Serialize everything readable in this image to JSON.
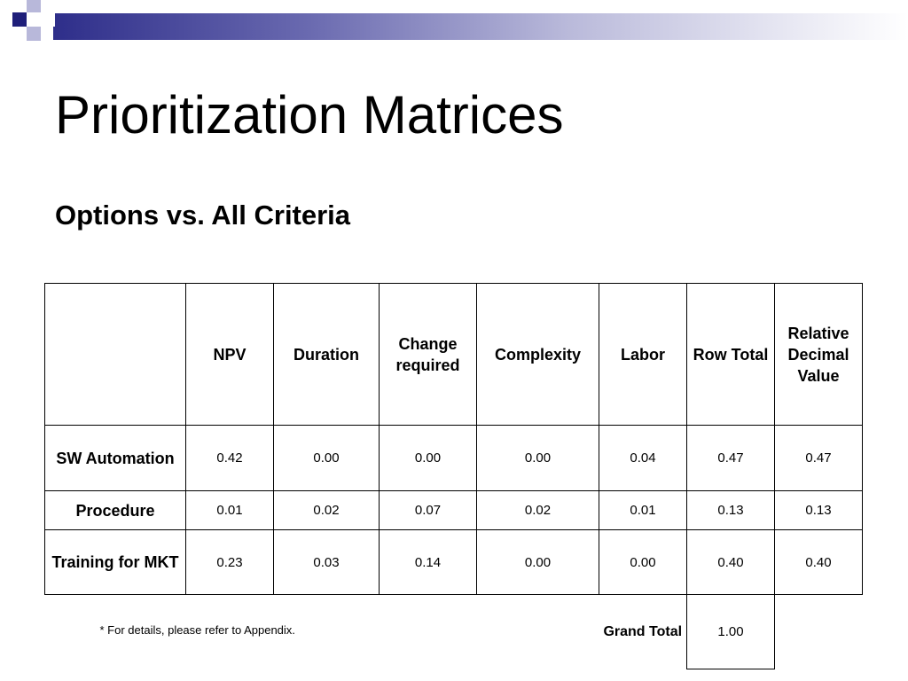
{
  "slide": {
    "title": "Prioritization Matrices",
    "subtitle": "Options vs. All Criteria",
    "footnote": "* For details, please refer to Appendix."
  },
  "table": {
    "headers": [
      "",
      "NPV",
      "Duration",
      "Change required",
      "Complexity",
      "Labor",
      "Row Total",
      "Relative Decimal Value"
    ],
    "rows": [
      {
        "label": "SW Automation",
        "values": [
          "0.42",
          "0.00",
          "0.00",
          "0.00",
          "0.04",
          "0.47",
          "0.47"
        ]
      },
      {
        "label": "Procedure",
        "values": [
          "0.01",
          "0.02",
          "0.07",
          "0.02",
          "0.01",
          "0.13",
          "0.13"
        ]
      },
      {
        "label": "Training for MKT",
        "values": [
          "0.23",
          "0.03",
          "0.14",
          "0.00",
          "0.00",
          "0.40",
          "0.40"
        ]
      }
    ],
    "grand_total_label": "Grand Total",
    "grand_total_value": "1.00"
  },
  "colors": {
    "header_band_dark": "#1f1f7a",
    "header_band_light": "#b8b8da"
  }
}
